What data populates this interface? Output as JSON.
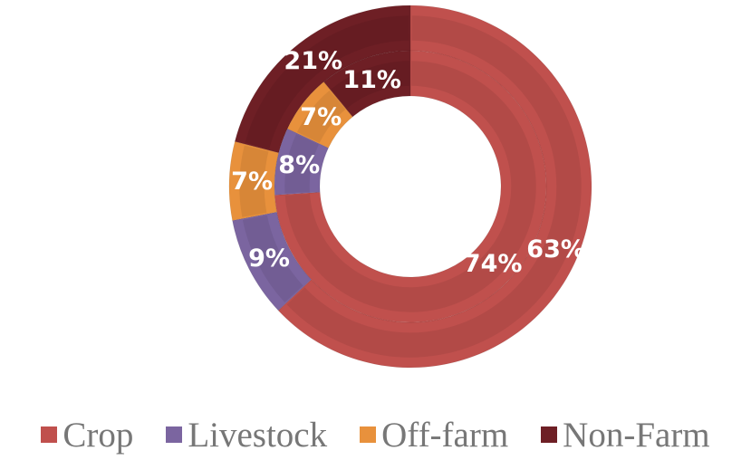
{
  "chart_data": {
    "type": "donut",
    "categories": [
      "Crop",
      "Livestock",
      "Off-farm",
      "Non-Farm"
    ],
    "colors": [
      "#C0504D",
      "#7B65A0",
      "#E8913C",
      "#6E1F25"
    ],
    "series": [
      {
        "ring": "outer",
        "values": [
          63,
          9,
          7,
          21
        ],
        "labels": [
          "63%",
          "9%",
          "7%",
          "21%"
        ]
      },
      {
        "ring": "inner",
        "values": [
          74,
          8,
          7,
          11
        ],
        "labels": [
          "74%",
          "8%",
          "7%",
          "11%"
        ]
      }
    ],
    "legend_position": "bottom"
  },
  "legend": {
    "items": [
      {
        "label": "Crop",
        "color": "#C0504D"
      },
      {
        "label": "Livestock",
        "color": "#7B65A0"
      },
      {
        "label": "Off-farm",
        "color": "#E8913C"
      },
      {
        "label": "Non-Farm",
        "color": "#6E1F25"
      }
    ]
  }
}
